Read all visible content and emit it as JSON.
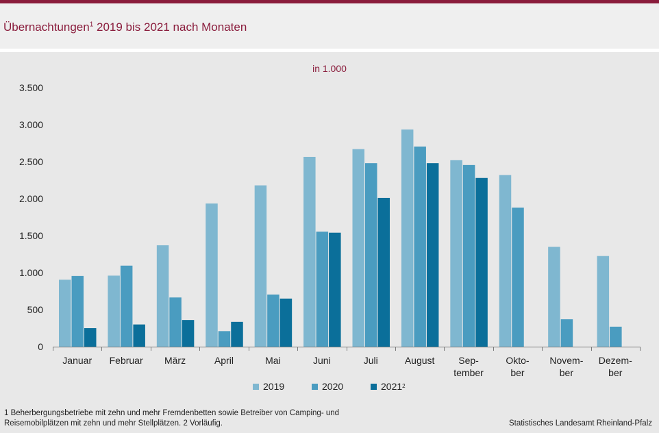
{
  "title": {
    "main": "Übernachtungen",
    "sup": "1",
    "rest": " 2019 bis 2021 nach Monaten"
  },
  "unit": "in 1.000",
  "colors": {
    "accent": "#8a1c3c",
    "s2019": "#7fb7d0",
    "s2020": "#4a9cc0",
    "s2021": "#0b6f9a"
  },
  "legend": [
    {
      "label": "2019",
      "sup": ""
    },
    {
      "label": "2020",
      "sup": ""
    },
    {
      "label": "2021",
      "sup": "2"
    }
  ],
  "chart_data": {
    "type": "bar",
    "title": "Übernachtungen 2019 bis 2021 nach Monaten",
    "ylabel": "in 1.000",
    "ylim": [
      0,
      3500
    ],
    "yticks": [
      0,
      500,
      1000,
      1500,
      2000,
      2500,
      3000,
      3500
    ],
    "ytick_labels": [
      "0",
      "500",
      "1.000",
      "1.500",
      "2.000",
      "2.500",
      "3.000",
      "3.500"
    ],
    "categories": [
      [
        "Januar"
      ],
      [
        "Februar"
      ],
      [
        "März"
      ],
      [
        "April"
      ],
      [
        "Mai"
      ],
      [
        "Juni"
      ],
      [
        "Juli"
      ],
      [
        "August"
      ],
      [
        "Sep-",
        "tember"
      ],
      [
        "Okto-",
        "ber"
      ],
      [
        "Novem-",
        "ber"
      ],
      [
        "Dezem-",
        "ber"
      ]
    ],
    "series": [
      {
        "name": "2019",
        "values": [
          905,
          960,
          1370,
          1935,
          2180,
          2565,
          2670,
          2935,
          2520,
          2320,
          1350,
          1225
        ]
      },
      {
        "name": "2020",
        "values": [
          955,
          1095,
          665,
          210,
          705,
          1555,
          2480,
          2705,
          2455,
          1880,
          370,
          270
        ]
      },
      {
        "name": "2021",
        "values": [
          250,
          300,
          360,
          335,
          650,
          1540,
          2010,
          2480,
          2280,
          null,
          null,
          null
        ]
      }
    ],
    "legend_position": "bottom"
  },
  "footnote": {
    "line1": "1 Beherbergungsbetriebe mit zehn und mehr Fremdenbetten sowie Betreiber von Camping- und",
    "line2": "Reisemobilplätzen mit zehn und mehr Stellplätzen. 2 Vorläufig."
  },
  "source": "Statistisches Landesamt Rheinland-Pfalz"
}
